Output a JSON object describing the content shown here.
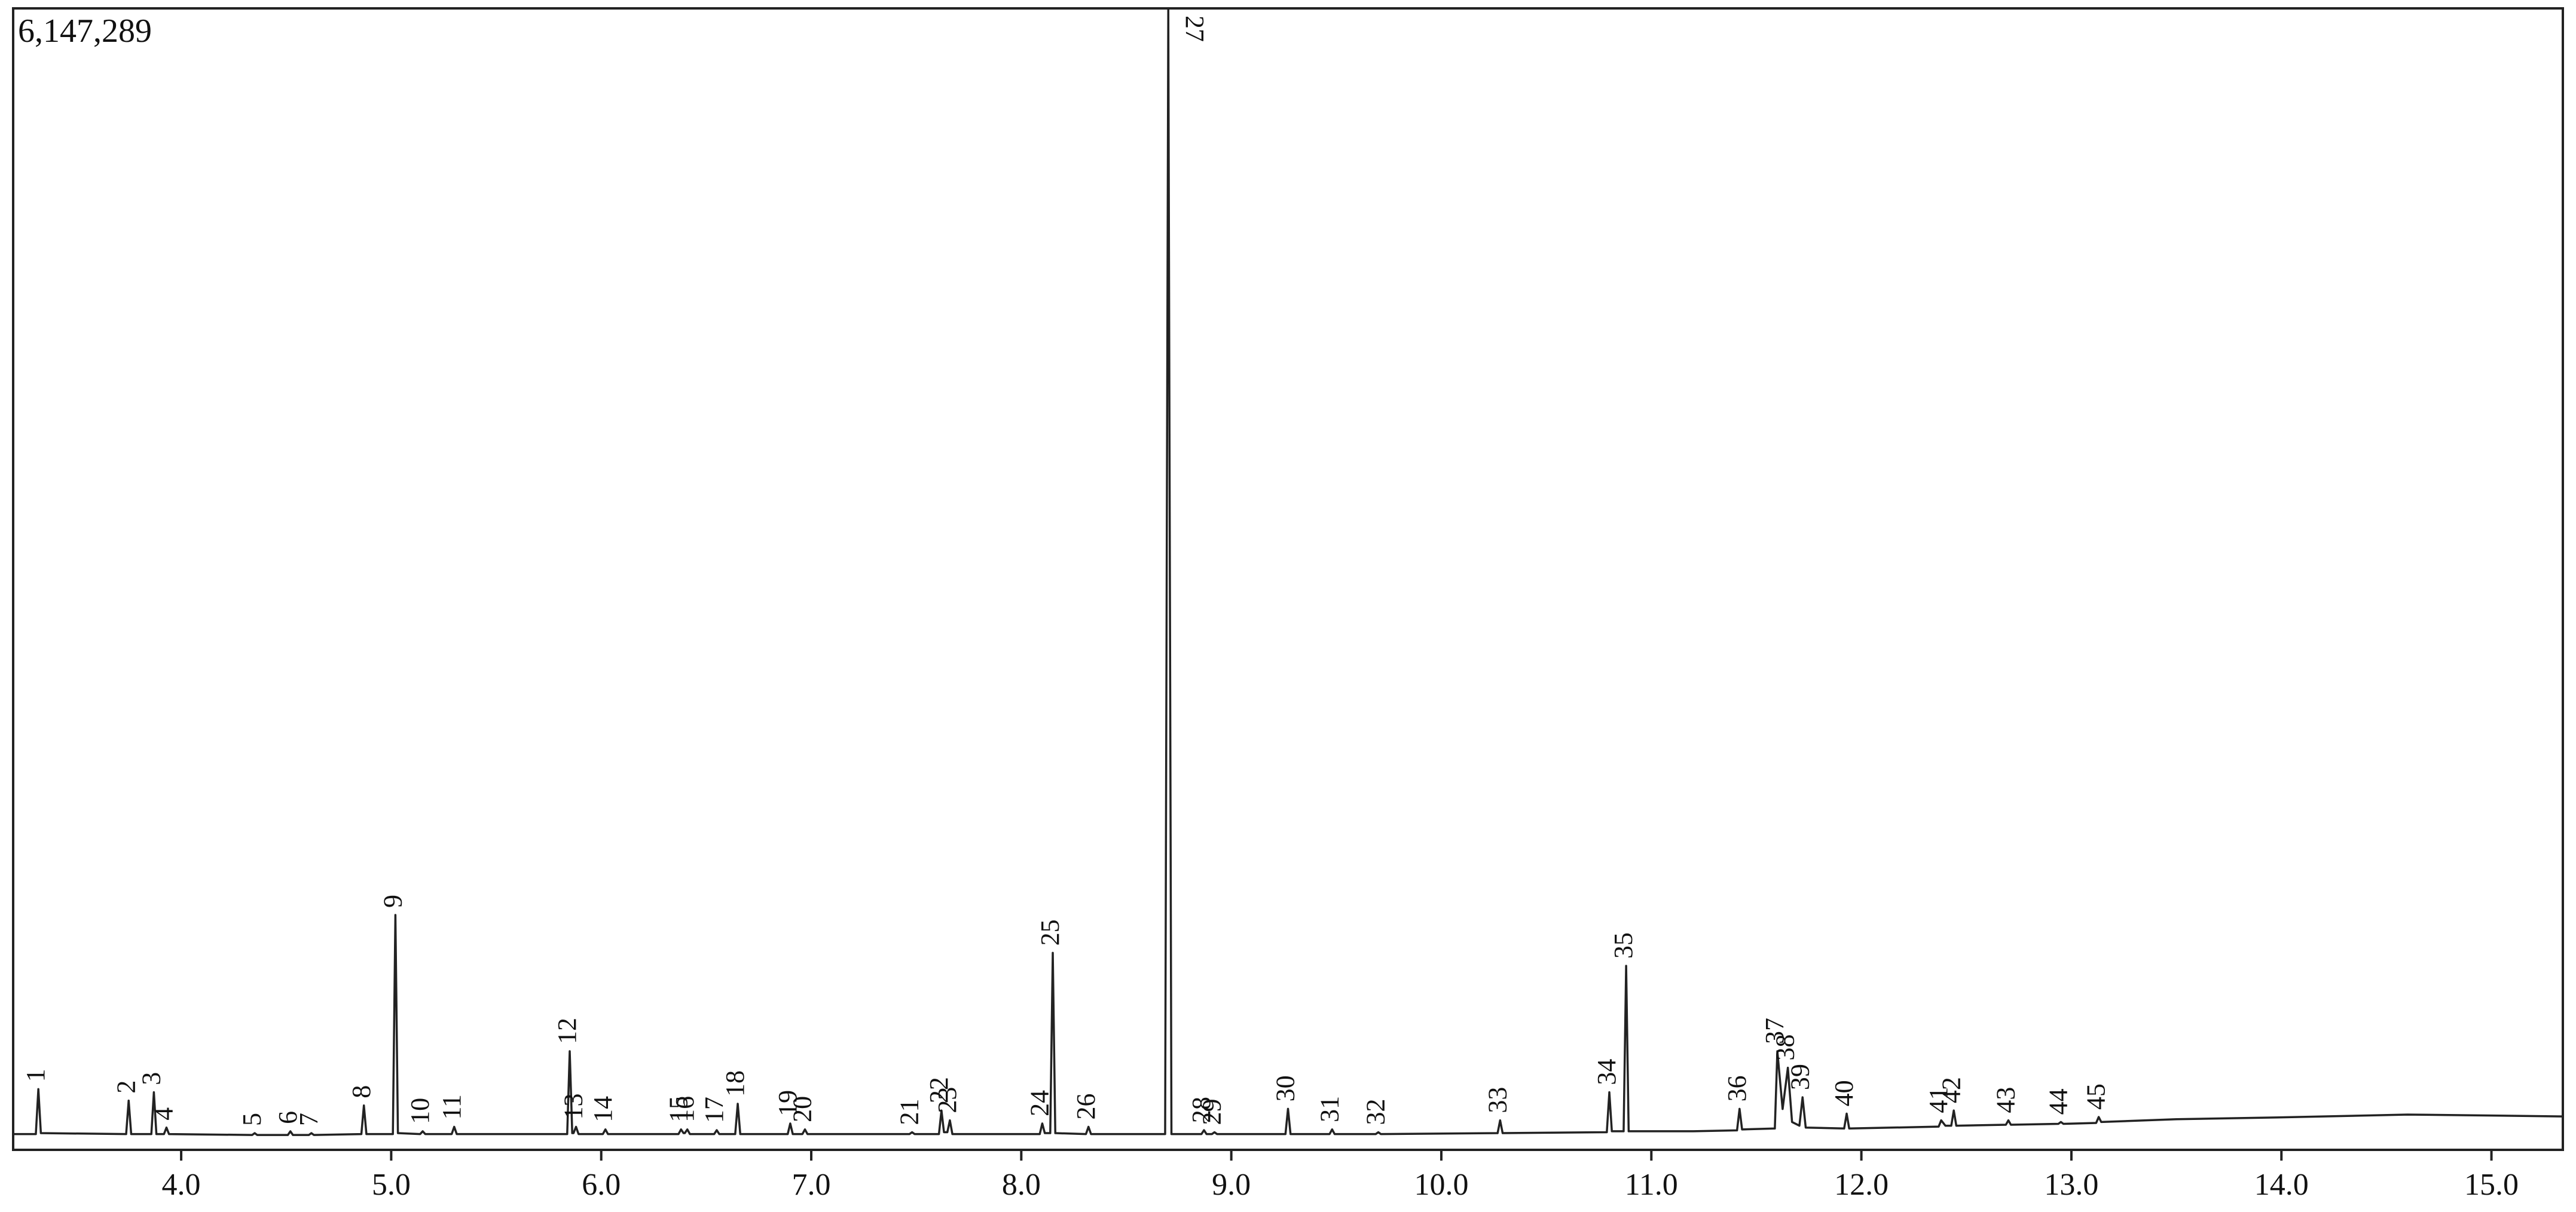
{
  "chart_data": {
    "type": "line",
    "xlim": [
      3.2,
      15.34
    ],
    "ylim": [
      0,
      6147289
    ],
    "xticks": [
      {
        "value": 4,
        "label": "4.0"
      },
      {
        "value": 5,
        "label": "5.0"
      },
      {
        "value": 6,
        "label": "6.0"
      },
      {
        "value": 7,
        "label": "7.0"
      },
      {
        "value": 8,
        "label": "8.0"
      },
      {
        "value": 9,
        "label": "9.0"
      },
      {
        "value": 10,
        "label": "10.0"
      },
      {
        "value": 11,
        "label": "11.0"
      },
      {
        "value": 12,
        "label": "12.0"
      },
      {
        "value": 13,
        "label": "13.0"
      },
      {
        "value": 14,
        "label": "14.0"
      },
      {
        "value": 15,
        "label": "15.0"
      }
    ],
    "yticks": [
      {
        "value": 6147289,
        "label": "6,147,289"
      }
    ],
    "series": [
      {
        "color": "#222222",
        "x": [
          3.2,
          3.308,
          3.32,
          3.332,
          3.738,
          3.75,
          3.762,
          3.858,
          3.87,
          3.882,
          3.918,
          3.93,
          3.942,
          4.338,
          4.35,
          4.362,
          4.508,
          4.52,
          4.532,
          4.608,
          4.62,
          4.632,
          4.858,
          4.87,
          4.882,
          5.008,
          5.02,
          5.032,
          5.138,
          5.15,
          5.162,
          5.288,
          5.3,
          5.312,
          5.838,
          5.85,
          5.862,
          5.868,
          5.88,
          5.892,
          6.008,
          6.02,
          6.032,
          6.368,
          6.38,
          6.392,
          6.398,
          6.41,
          6.422,
          6.538,
          6.55,
          6.562,
          6.638,
          6.65,
          6.662,
          6.888,
          6.9,
          6.912,
          6.958,
          6.97,
          6.982,
          7.468,
          7.48,
          7.492,
          7.608,
          7.62,
          7.632,
          7.648,
          7.66,
          7.672,
          8.088,
          8.1,
          8.112,
          8.138,
          8.15,
          8.162,
          8.308,
          8.32,
          8.332,
          8.685,
          8.7,
          8.715,
          8.858,
          8.87,
          8.882,
          8.908,
          8.92,
          8.932,
          9.258,
          9.27,
          9.282,
          9.468,
          9.48,
          9.492,
          9.688,
          9.7,
          9.712,
          10.268,
          10.28,
          10.292,
          10.788,
          10.8,
          10.812,
          10.868,
          10.88,
          10.892,
          11.2,
          11.408,
          11.42,
          11.432,
          11.588,
          11.6,
          11.625,
          11.65,
          11.67,
          11.705,
          11.72,
          11.735,
          11.918,
          11.93,
          11.942,
          12.368,
          12.38,
          12.4,
          12.428,
          12.44,
          12.452,
          12.688,
          12.7,
          12.712,
          12.938,
          12.95,
          12.962,
          13.118,
          13.13,
          13.142,
          13.5,
          14.0,
          14.6,
          15.34
        ],
        "values": [
          85000,
          85000,
          327000,
          90000,
          85000,
          265000,
          85000,
          85000,
          310000,
          85000,
          85000,
          120000,
          85000,
          80000,
          90000,
          80000,
          80000,
          100000,
          80000,
          80000,
          90000,
          80000,
          85000,
          239000,
          85000,
          85000,
          1265000,
          90000,
          85000,
          100000,
          85000,
          85000,
          124000,
          85000,
          85000,
          531000,
          90000,
          90000,
          124000,
          85000,
          85000,
          110000,
          85000,
          85000,
          110000,
          90000,
          90000,
          110000,
          85000,
          85000,
          106000,
          85000,
          85000,
          248000,
          85000,
          85000,
          142000,
          85000,
          85000,
          110000,
          85000,
          85000,
          95000,
          85000,
          85000,
          212000,
          95000,
          95000,
          159000,
          85000,
          85000,
          142000,
          90000,
          90000,
          1061000,
          90000,
          85000,
          124000,
          85000,
          85000,
          6147289,
          85000,
          85000,
          106000,
          85000,
          85000,
          95000,
          85000,
          85000,
          221000,
          85000,
          85000,
          110000,
          85000,
          85000,
          95000,
          85000,
          90000,
          159000,
          90000,
          95000,
          310000,
          100000,
          100000,
          991000,
          100000,
          100000,
          105000,
          221000,
          110000,
          115000,
          531000,
          220000,
          442000,
          150000,
          130000,
          283000,
          120000,
          115000,
          195000,
          115000,
          125000,
          159000,
          130000,
          130000,
          212000,
          130000,
          135000,
          159000,
          135000,
          140000,
          150000,
          140000,
          145000,
          177000,
          150000,
          165000,
          175000,
          190000,
          180000
        ]
      }
    ],
    "peaks": [
      {
        "label": "1",
        "x": 3.32,
        "y": 327000
      },
      {
        "label": "2",
        "x": 3.75,
        "y": 265000
      },
      {
        "label": "3",
        "x": 3.87,
        "y": 310000
      },
      {
        "label": "4",
        "x": 3.93,
        "y": 120000
      },
      {
        "label": "5",
        "x": 4.35,
        "y": 90000
      },
      {
        "label": "6",
        "x": 4.52,
        "y": 100000
      },
      {
        "label": "7",
        "x": 4.62,
        "y": 90000
      },
      {
        "label": "8",
        "x": 4.87,
        "y": 239000
      },
      {
        "label": "9",
        "x": 5.02,
        "y": 1265000
      },
      {
        "label": "10",
        "x": 5.15,
        "y": 100000
      },
      {
        "label": "11",
        "x": 5.3,
        "y": 124000
      },
      {
        "label": "12",
        "x": 5.85,
        "y": 531000
      },
      {
        "label": "13",
        "x": 5.88,
        "y": 124000
      },
      {
        "label": "14",
        "x": 6.02,
        "y": 110000
      },
      {
        "label": "15",
        "x": 6.38,
        "y": 110000
      },
      {
        "label": "16",
        "x": 6.41,
        "y": 110000
      },
      {
        "label": "17",
        "x": 6.55,
        "y": 106000
      },
      {
        "label": "18",
        "x": 6.65,
        "y": 248000
      },
      {
        "label": "19",
        "x": 6.9,
        "y": 142000
      },
      {
        "label": "20",
        "x": 6.97,
        "y": 110000
      },
      {
        "label": "21",
        "x": 7.48,
        "y": 95000
      },
      {
        "label": "22",
        "x": 7.62,
        "y": 212000
      },
      {
        "label": "23",
        "x": 7.66,
        "y": 159000
      },
      {
        "label": "24",
        "x": 8.1,
        "y": 142000
      },
      {
        "label": "25",
        "x": 8.15,
        "y": 1061000
      },
      {
        "label": "26",
        "x": 8.32,
        "y": 124000
      },
      {
        "label": "27",
        "x": 8.7,
        "y": 6147289
      },
      {
        "label": "28",
        "x": 8.87,
        "y": 106000
      },
      {
        "label": "29",
        "x": 8.92,
        "y": 95000
      },
      {
        "label": "30",
        "x": 9.27,
        "y": 221000
      },
      {
        "label": "31",
        "x": 9.48,
        "y": 110000
      },
      {
        "label": "32",
        "x": 9.7,
        "y": 95000
      },
      {
        "label": "33",
        "x": 10.28,
        "y": 159000
      },
      {
        "label": "34",
        "x": 10.8,
        "y": 310000
      },
      {
        "label": "35",
        "x": 10.88,
        "y": 991000
      },
      {
        "label": "36",
        "x": 11.42,
        "y": 221000
      },
      {
        "label": "37",
        "x": 11.6,
        "y": 531000
      },
      {
        "label": "38",
        "x": 11.65,
        "y": 442000
      },
      {
        "label": "39",
        "x": 11.72,
        "y": 283000
      },
      {
        "label": "40",
        "x": 11.93,
        "y": 195000
      },
      {
        "label": "41",
        "x": 12.38,
        "y": 159000
      },
      {
        "label": "42",
        "x": 12.44,
        "y": 212000
      },
      {
        "label": "43",
        "x": 12.7,
        "y": 159000
      },
      {
        "label": "44",
        "x": 12.95,
        "y": 150000
      },
      {
        "label": "45",
        "x": 13.13,
        "y": 177000
      }
    ]
  }
}
